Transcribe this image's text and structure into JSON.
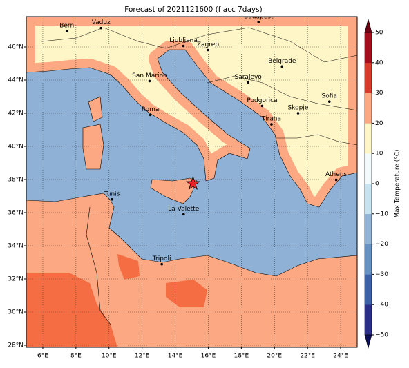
{
  "map": {
    "title": "Forecast of 2021121600 (f acc 7days)",
    "xlim": [
      5,
      25
    ],
    "ylim": [
      27.875,
      47.833
    ],
    "xticks": [
      {
        "value": 6,
        "label": "6°E"
      },
      {
        "value": 8,
        "label": "8°E"
      },
      {
        "value": 10,
        "label": "10°E"
      },
      {
        "value": 12,
        "label": "12°E"
      },
      {
        "value": 14,
        "label": "14°E"
      },
      {
        "value": 16,
        "label": "16°E"
      },
      {
        "value": 18,
        "label": "18°E"
      },
      {
        "value": 20,
        "label": "20°E"
      },
      {
        "value": 22,
        "label": "22°E"
      },
      {
        "value": 24,
        "label": "24°E"
      }
    ],
    "yticks": [
      {
        "value": 28,
        "label": "28°N"
      },
      {
        "value": 30,
        "label": "30°N"
      },
      {
        "value": 32,
        "label": "32°N"
      },
      {
        "value": 34,
        "label": "34°N"
      },
      {
        "value": 36,
        "label": "36°N"
      },
      {
        "value": 38,
        "label": "38°N"
      },
      {
        "value": 40,
        "label": "40°N"
      },
      {
        "value": 42,
        "label": "42°N"
      },
      {
        "value": 44,
        "label": "44°N"
      },
      {
        "value": 46,
        "label": "46°N"
      }
    ],
    "grid": true,
    "cities": [
      {
        "name": "Bern",
        "lon": 7.45,
        "lat": 46.95
      },
      {
        "name": "Vaduz",
        "lon": 9.52,
        "lat": 47.14
      },
      {
        "name": "Ljubljana",
        "lon": 14.5,
        "lat": 46.06
      },
      {
        "name": "Zagreb",
        "lon": 15.98,
        "lat": 45.81
      },
      {
        "name": "Budapest",
        "lon": 19.04,
        "lat": 47.5
      },
      {
        "name": "Belgrade",
        "lon": 20.46,
        "lat": 44.82
      },
      {
        "name": "Sarajevo",
        "lon": 18.41,
        "lat": 43.86
      },
      {
        "name": "San Marino",
        "lon": 12.45,
        "lat": 43.94
      },
      {
        "name": "Roma",
        "lon": 12.5,
        "lat": 41.9
      },
      {
        "name": "Podgorica",
        "lon": 19.26,
        "lat": 42.44
      },
      {
        "name": "Skopje",
        "lon": 21.43,
        "lat": 42.0
      },
      {
        "name": "Sofia",
        "lon": 23.32,
        "lat": 42.7
      },
      {
        "name": "Tirana",
        "lon": 19.82,
        "lat": 41.33
      },
      {
        "name": "Athens",
        "lon": 23.73,
        "lat": 37.98
      },
      {
        "name": "Tunis",
        "lon": 10.18,
        "lat": 36.8
      },
      {
        "name": "La Valette",
        "lon": 14.51,
        "lat": 35.9
      },
      {
        "name": "Tripoli",
        "lon": 13.19,
        "lat": 32.89
      }
    ],
    "star": {
      "lon": 15.08,
      "lat": 37.75,
      "color": "#e8262a"
    },
    "colorbar": {
      "label": "Max Temperature (°C)",
      "lim": [
        -50,
        50
      ],
      "ticks": [
        {
          "value": -50,
          "label": "−50"
        },
        {
          "value": -40,
          "label": "−40"
        },
        {
          "value": -30,
          "label": "−30"
        },
        {
          "value": -20,
          "label": "−20"
        },
        {
          "value": -10,
          "label": "−10"
        },
        0,
        10,
        20,
        30,
        40,
        50
      ],
      "colors": [
        "#2b2f8a",
        "#3e62a8",
        "#6590c2",
        "#91b4d6",
        "#c6e3ef",
        "#f3fafc",
        "#fff6c8",
        "#fca882",
        "#d83a2c",
        "#a50f1d"
      ],
      "extend_colors": [
        "#0d0f5c",
        "#6b0010"
      ]
    }
  }
}
